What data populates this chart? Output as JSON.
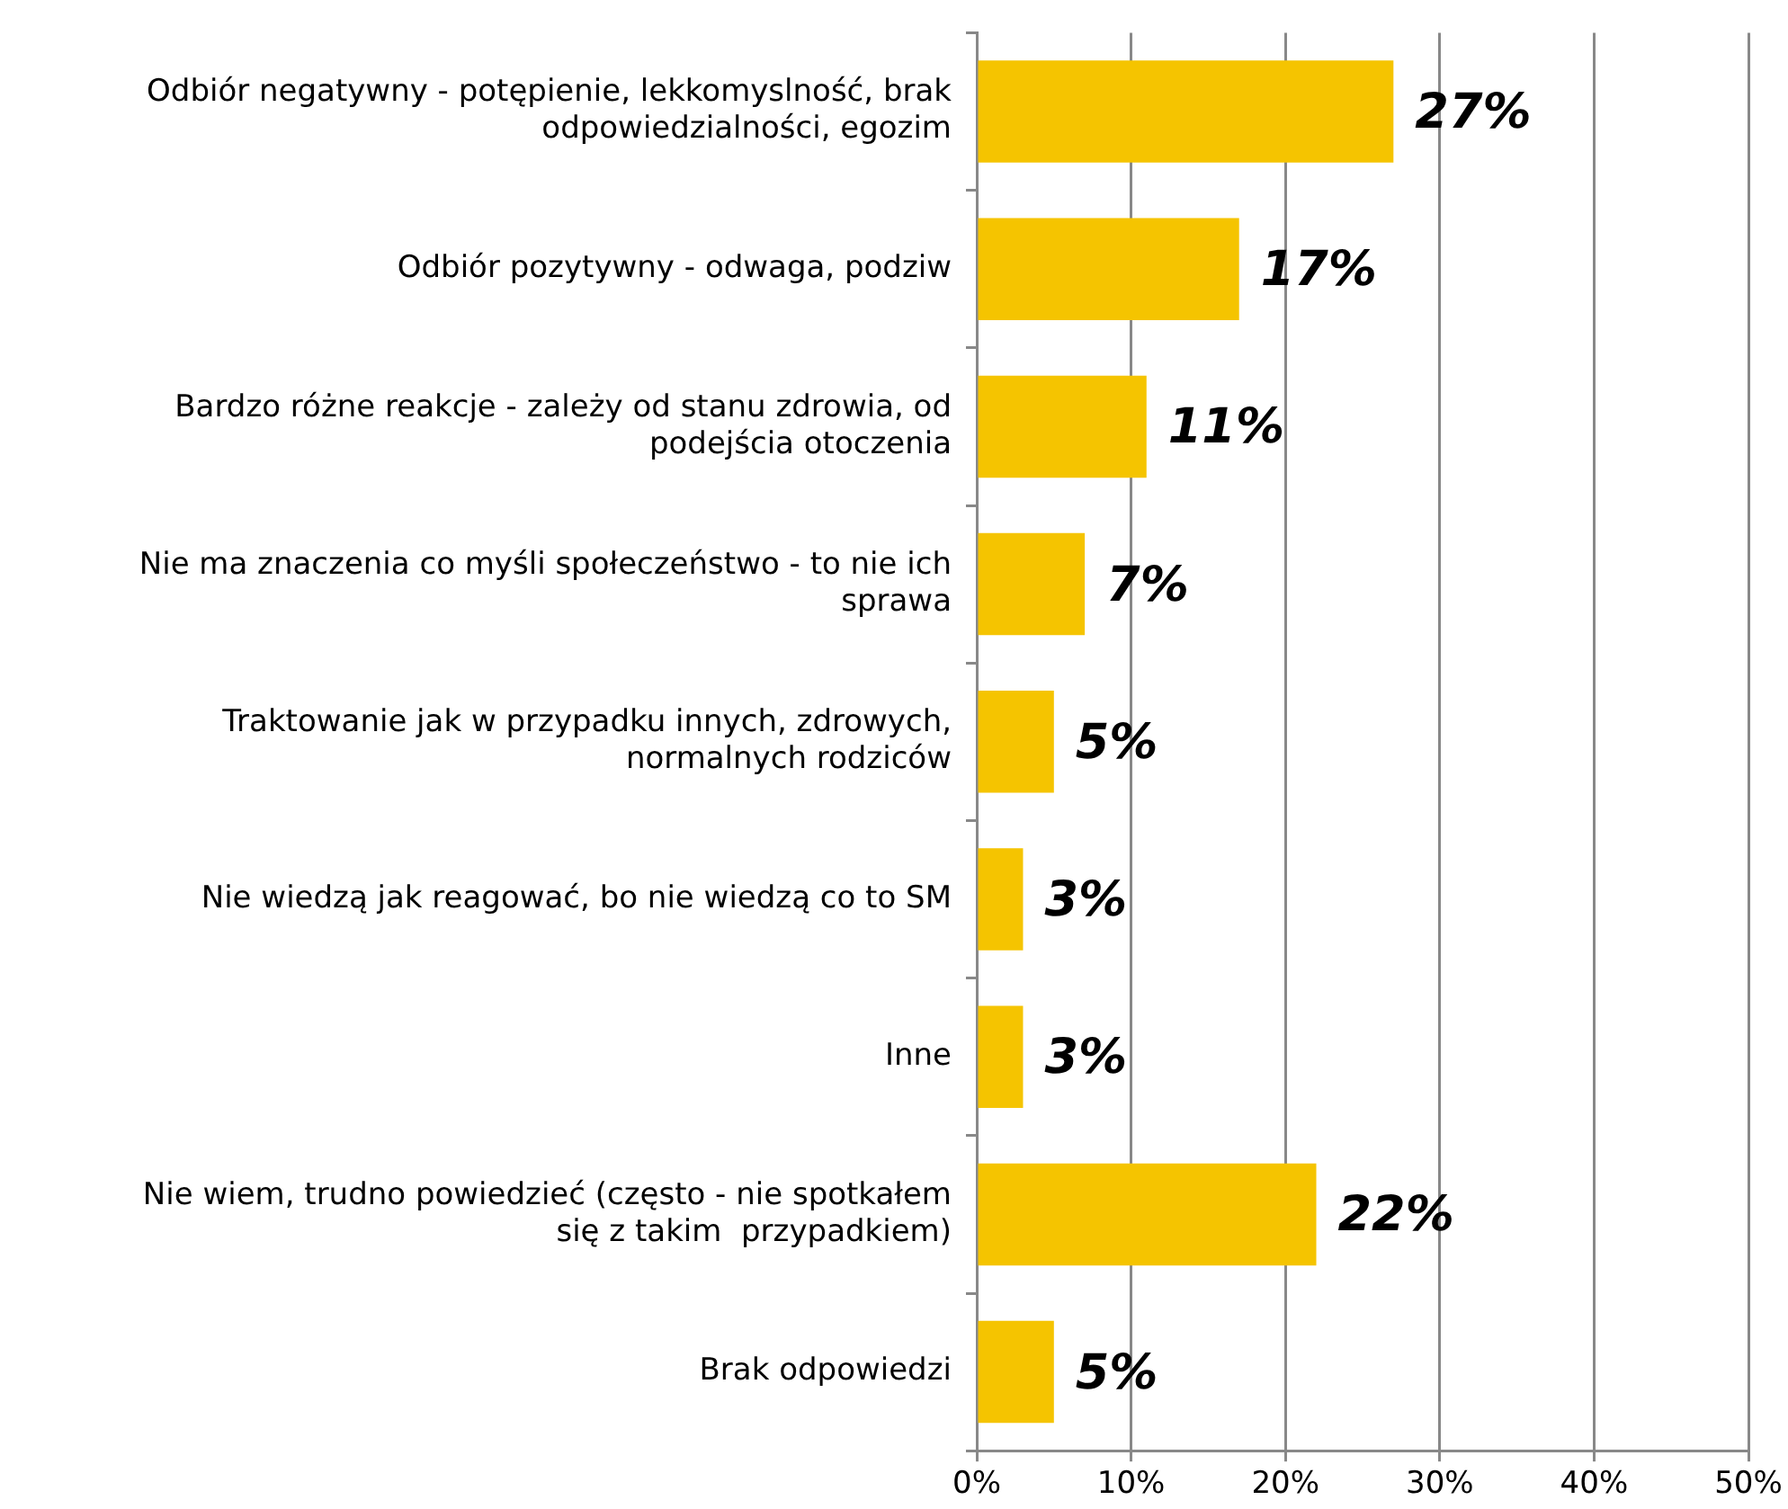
{
  "chart_data": {
    "type": "bar",
    "orientation": "horizontal",
    "categories": [
      "Odbiór negatywny - potępienie, lekkomyslność, brak odpowiedzialności, egozim",
      "Odbiór pozytywny - odwaga, podziw",
      "Bardzo różne reakcje - zależy od stanu zdrowia, od podejścia otoczenia",
      "Nie ma znaczenia co myśli społeczeństwo - to nie ich sprawa",
      "Traktowanie jak w przypadku innych, zdrowych, normalnych rodziców",
      "Nie wiedzą jak reagować, bo nie wiedzą co to SM",
      "Inne",
      "Nie wiem, trudno powiedzieć (często - nie spotkałem się z takim  przypadkiem)",
      "Brak odpowiedzi"
    ],
    "values": [
      27,
      17,
      11,
      7,
      5,
      3,
      3,
      22,
      5
    ],
    "value_labels": [
      "27%",
      "17%",
      "11%",
      "7%",
      "5%",
      "3%",
      "3%",
      "22%",
      "5%"
    ],
    "color": "#f5c400",
    "xlim": [
      0,
      50
    ],
    "xticks": [
      {
        "value": 0,
        "label": "0%"
      },
      {
        "value": 10,
        "label": "10%"
      },
      {
        "value": 20,
        "label": "20%"
      },
      {
        "value": 30,
        "label": "30%"
      },
      {
        "value": 40,
        "label": "40%"
      },
      {
        "value": 50,
        "label": "50%"
      }
    ],
    "grid": "x",
    "legend": false
  }
}
